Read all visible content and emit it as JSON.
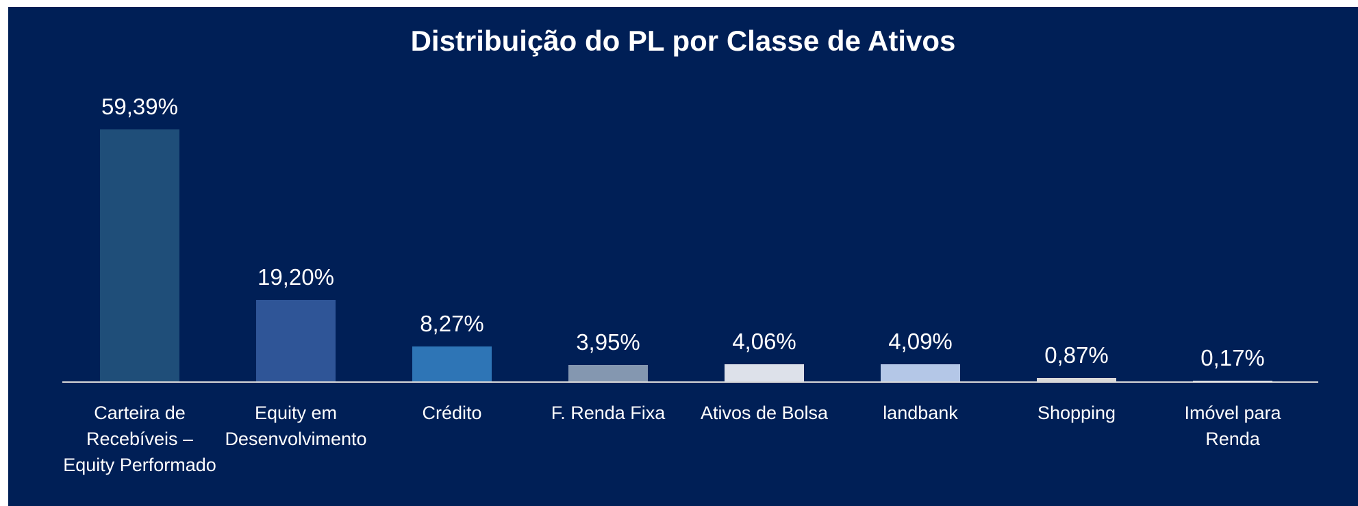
{
  "chart_data": {
    "type": "bar",
    "title": "Distribuição do PL por Classe de Ativos",
    "categories": [
      "Carteira de Recebíveis – Equity Performado",
      "Equity em Desenvolvimento",
      "Crédito",
      "F. Renda Fixa",
      "Ativos de Bolsa",
      "landbank",
      "Shopping",
      "Imóvel para Renda"
    ],
    "values": [
      59.39,
      19.2,
      8.27,
      3.95,
      4.06,
      4.09,
      0.87,
      0.17
    ],
    "value_labels": [
      "59,39%",
      "19,20%",
      "8,27%",
      "3,95%",
      "4,06%",
      "4,09%",
      "0,87%",
      "0,17%"
    ],
    "colors": [
      "#1f4e79",
      "#2f5597",
      "#2e75b6",
      "#8497b0",
      "#dde1ea",
      "#b4c7e7",
      "#d9d9d9",
      "#e8ebf0"
    ]
  }
}
